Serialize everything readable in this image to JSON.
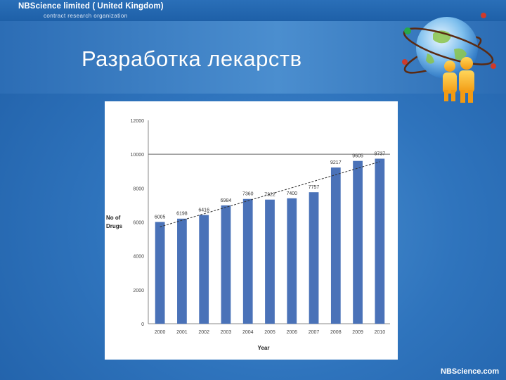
{
  "header": {
    "brand": "NBScience limited ( United Kingdom)",
    "subtitle": "contract research organization"
  },
  "slide": {
    "title": "Разработка лекарств"
  },
  "footer": {
    "brand": "NBScience.com"
  },
  "colors": {
    "bar": "#4a72b8",
    "trendline": "#333333",
    "background": "#2f74bd"
  },
  "icons": [
    "globe-icon",
    "people-icon"
  ],
  "chart_data": {
    "type": "bar",
    "categories": [
      "2000",
      "2001",
      "2002",
      "2003",
      "2004",
      "2005",
      "2006",
      "2007",
      "2008",
      "2009",
      "2010"
    ],
    "values": [
      6005,
      6198,
      6416,
      6984,
      7360,
      7322,
      7400,
      7757,
      9217,
      9605,
      9737
    ],
    "data_labels": [
      "6005",
      "6198",
      "6416",
      "6984",
      "7360",
      "7322",
      "7400",
      "7757",
      "9217",
      "9605",
      "9737"
    ],
    "xlabel": "Year",
    "ylabel": "No of Drugs",
    "ylim": [
      0,
      12000
    ],
    "yticks": [
      "0",
      "2000",
      "4000",
      "6000",
      "8000",
      "10000",
      "12000"
    ],
    "trendline": "linear",
    "grid": false
  }
}
